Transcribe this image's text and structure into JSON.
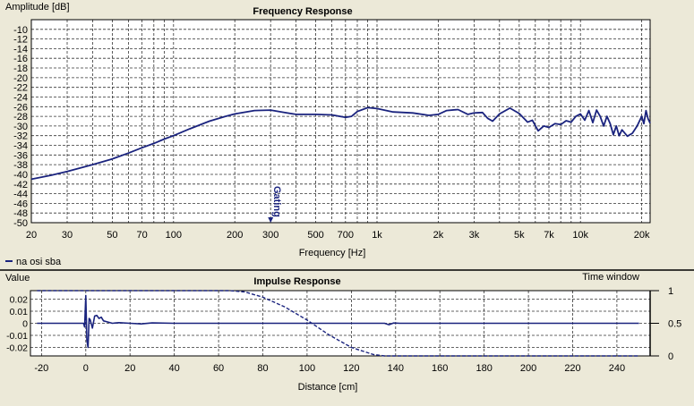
{
  "chart_data": [
    {
      "type": "line",
      "title": "Frequency Response",
      "ylabel": "Amplitude [dB]",
      "xlabel": "Frequency [Hz]",
      "x_scale": "log",
      "xlim": [
        20,
        22000
      ],
      "ylim": [
        -50,
        -8
      ],
      "yticks": [
        -10,
        -12,
        -14,
        -16,
        -18,
        -20,
        -22,
        -24,
        -26,
        -28,
        -30,
        -32,
        -34,
        -36,
        -38,
        -40,
        -42,
        -44,
        -46,
        -48,
        -50
      ],
      "xtick_labels": [
        {
          "v": 20,
          "t": "20"
        },
        {
          "v": 30,
          "t": "30"
        },
        {
          "v": 50,
          "t": "50"
        },
        {
          "v": 70,
          "t": "70"
        },
        {
          "v": 100,
          "t": "100"
        },
        {
          "v": 200,
          "t": "200"
        },
        {
          "v": 300,
          "t": "300"
        },
        {
          "v": 500,
          "t": "500"
        },
        {
          "v": 700,
          "t": "700"
        },
        {
          "v": 1000,
          "t": "1k"
        },
        {
          "v": 2000,
          "t": "2k"
        },
        {
          "v": 3000,
          "t": "3k"
        },
        {
          "v": 5000,
          "t": "5k"
        },
        {
          "v": 7000,
          "t": "7k"
        },
        {
          "v": 10000,
          "t": "10k"
        },
        {
          "v": 20000,
          "t": "20k"
        }
      ],
      "grid": true,
      "annotation": {
        "text": "Gating",
        "x": 300
      },
      "legend": "na osi sba",
      "series": [
        {
          "name": "na osi sba",
          "color": "#1a237e",
          "points": [
            [
              20,
              -41
            ],
            [
              25,
              -40.2
            ],
            [
              30,
              -39.4
            ],
            [
              40,
              -38
            ],
            [
              50,
              -36.8
            ],
            [
              60,
              -35.6
            ],
            [
              70,
              -34.5
            ],
            [
              80,
              -33.6
            ],
            [
              90,
              -32.7
            ],
            [
              100,
              -32
            ],
            [
              120,
              -30.6
            ],
            [
              150,
              -29
            ],
            [
              180,
              -28
            ],
            [
              200,
              -27.5
            ],
            [
              250,
              -26.8
            ],
            [
              300,
              -26.7
            ],
            [
              350,
              -27.2
            ],
            [
              400,
              -27.6
            ],
            [
              500,
              -27.6
            ],
            [
              600,
              -27.7
            ],
            [
              700,
              -28.2
            ],
            [
              750,
              -28
            ],
            [
              800,
              -27
            ],
            [
              900,
              -26.2
            ],
            [
              1000,
              -26.4
            ],
            [
              1200,
              -27.1
            ],
            [
              1500,
              -27.3
            ],
            [
              1800,
              -27.8
            ],
            [
              2000,
              -27.6
            ],
            [
              2200,
              -26.8
            ],
            [
              2500,
              -26.6
            ],
            [
              2800,
              -27.6
            ],
            [
              3000,
              -27.3
            ],
            [
              3300,
              -27.2
            ],
            [
              3500,
              -28.4
            ],
            [
              3700,
              -29
            ],
            [
              4000,
              -27.5
            ],
            [
              4500,
              -26.3
            ],
            [
              5000,
              -27.4
            ],
            [
              5500,
              -29.2
            ],
            [
              5800,
              -28.8
            ],
            [
              6200,
              -31
            ],
            [
              6600,
              -30
            ],
            [
              7000,
              -30.3
            ],
            [
              7500,
              -29.5
            ],
            [
              8000,
              -29.7
            ],
            [
              8500,
              -28.9
            ],
            [
              9000,
              -29.2
            ],
            [
              9500,
              -28
            ],
            [
              10000,
              -27.5
            ],
            [
              10500,
              -28.8
            ],
            [
              11000,
              -26.8
            ],
            [
              11500,
              -29.3
            ],
            [
              12000,
              -26.7
            ],
            [
              12500,
              -28
            ],
            [
              13000,
              -30
            ],
            [
              13500,
              -28
            ],
            [
              14000,
              -29.5
            ],
            [
              14500,
              -31.8
            ],
            [
              15000,
              -30
            ],
            [
              15500,
              -32
            ],
            [
              16000,
              -30.8
            ],
            [
              17000,
              -32.1
            ],
            [
              18000,
              -31.5
            ],
            [
              19000,
              -30
            ],
            [
              20000,
              -28
            ],
            [
              20500,
              -29.5
            ],
            [
              21000,
              -26.8
            ],
            [
              21500,
              -28.5
            ],
            [
              22000,
              -29.4
            ]
          ]
        }
      ]
    },
    {
      "type": "line",
      "title": "Impulse Response",
      "ylabel": "Value",
      "y2label": "Time window",
      "xlabel": "Distance [cm]",
      "xlim": [
        -25,
        255
      ],
      "ylim": [
        -0.027,
        0.027
      ],
      "y2lim": [
        0,
        1
      ],
      "xticks": [
        -20,
        0,
        20,
        40,
        60,
        80,
        100,
        120,
        140,
        160,
        180,
        200,
        220,
        240
      ],
      "yticks": [
        {
          "v": 0.02,
          "t": "0.02"
        },
        {
          "v": 0.01,
          "t": "0.01"
        },
        {
          "v": 0,
          "t": "0"
        },
        {
          "v": -0.01,
          "t": "-0.01"
        },
        {
          "v": -0.02,
          "t": "-0.02"
        }
      ],
      "y2ticks": [
        {
          "v": 1,
          "t": "1"
        },
        {
          "v": 0.5,
          "t": "0.5"
        },
        {
          "v": 0,
          "t": "0"
        }
      ],
      "grid": true,
      "series": [
        {
          "name": "Impulse",
          "color": "#1a237e",
          "points": [
            [
              -22,
              0
            ],
            [
              -5,
              0
            ],
            [
              -1,
              0
            ],
            [
              -0.5,
              -0.003
            ],
            [
              0,
              0.023
            ],
            [
              0.5,
              -0.014
            ],
            [
              1,
              -0.02
            ],
            [
              1.5,
              0.004
            ],
            [
              2,
              0.003
            ],
            [
              3,
              -0.004
            ],
            [
              4,
              0.006
            ],
            [
              5,
              0.0065
            ],
            [
              6,
              0.004
            ],
            [
              7,
              0.005
            ],
            [
              8,
              0.002
            ],
            [
              10,
              0.001
            ],
            [
              12,
              0
            ],
            [
              15,
              0.0005
            ],
            [
              20,
              0
            ],
            [
              25,
              -0.0005
            ],
            [
              30,
              0.0003
            ],
            [
              40,
              0
            ],
            [
              60,
              0
            ],
            [
              100,
              0
            ],
            [
              130,
              0
            ],
            [
              135,
              0
            ],
            [
              137,
              -0.0012
            ],
            [
              139,
              0.0002
            ],
            [
              142,
              0
            ],
            [
              180,
              0
            ],
            [
              220,
              0
            ],
            [
              250,
              0
            ]
          ]
        },
        {
          "name": "Time window",
          "color": "#1a237e",
          "dashed": true,
          "axis": "y2",
          "points": [
            [
              -22,
              1
            ],
            [
              -5,
              1
            ],
            [
              65,
              1
            ],
            [
              72,
              0.98
            ],
            [
              80,
              0.9
            ],
            [
              90,
              0.75
            ],
            [
              100,
              0.55
            ],
            [
              110,
              0.32
            ],
            [
              120,
              0.13
            ],
            [
              130,
              0.02
            ],
            [
              135,
              0
            ],
            [
              250,
              0
            ]
          ]
        }
      ]
    }
  ]
}
